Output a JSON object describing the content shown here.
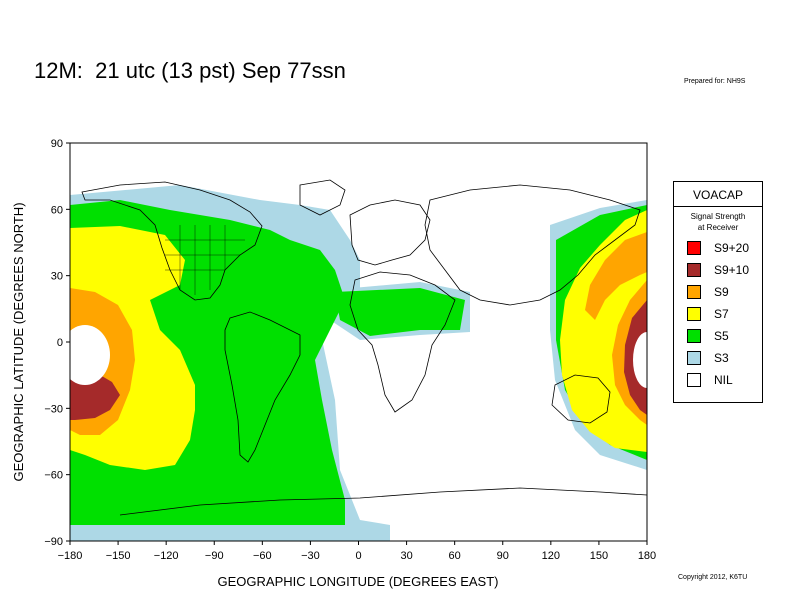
{
  "title": "12M:  21 utc (13 pst) Sep 77ssn",
  "prepared_for": "Prepared for: NH9S",
  "copyright": "Copyright 2012, K6TU",
  "axes": {
    "xlabel": "GEOGRAPHIC LONGITUDE (DEGREES EAST)",
    "ylabel": "GEOGRAPHIC LATITUDE (DEGREES NORTH)",
    "x_ticks": [
      "−180",
      "−150",
      "−120",
      "−90",
      "−60",
      "−30",
      "0",
      "30",
      "60",
      "90",
      "120",
      "150",
      "180"
    ],
    "y_ticks": [
      "90",
      "60",
      "30",
      "0",
      "−30",
      "−60",
      "−90"
    ]
  },
  "legend": {
    "title": "VOACAP",
    "subtitle_line1": "Signal Strength",
    "subtitle_line2": "at Receiver",
    "items": [
      {
        "label": "S9+20",
        "color": "#ff0000"
      },
      {
        "label": "S9+10",
        "color": "#a52a2a"
      },
      {
        "label": "S9",
        "color": "#ffa500"
      },
      {
        "label": "S7",
        "color": "#ffff00"
      },
      {
        "label": "S5",
        "color": "#00e000"
      },
      {
        "label": "S3",
        "color": "#add8e6"
      },
      {
        "label": "NIL",
        "color": "#ffffff"
      }
    ]
  }
}
